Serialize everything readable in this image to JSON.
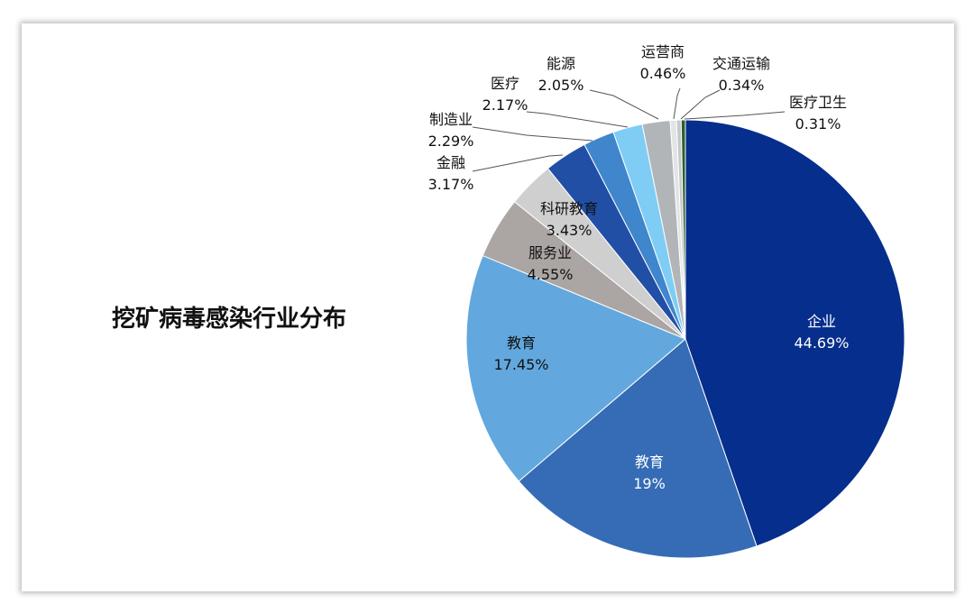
{
  "chart_data": {
    "type": "pie",
    "title": "挖矿病毒感染行业分布",
    "slices": [
      {
        "name": "企业",
        "pct": "44.69%",
        "value": 44.69,
        "color": "#062e8c"
      },
      {
        "name": "教育",
        "pct": "19%",
        "value": 19.0,
        "color": "#356cb5"
      },
      {
        "name": "教育",
        "pct": "17.45%",
        "value": 17.45,
        "color": "#62a8de"
      },
      {
        "name": "服务业",
        "pct": "4.55%",
        "value": 4.55,
        "color": "#aba5a3"
      },
      {
        "name": "科研教育",
        "pct": "3.43%",
        "value": 3.43,
        "color": "#cfcfcf"
      },
      {
        "name": "金融",
        "pct": "3.17%",
        "value": 3.17,
        "color": "#214fa6"
      },
      {
        "name": "制造业",
        "pct": "2.29%",
        "value": 2.29,
        "color": "#3f86cc"
      },
      {
        "name": "医疗",
        "pct": "2.17%",
        "value": 2.17,
        "color": "#7fcdf5"
      },
      {
        "name": "能源",
        "pct": "2.05%",
        "value": 2.05,
        "color": "#b2b5b8"
      },
      {
        "name": "运营商",
        "pct": "0.46%",
        "value": 0.46,
        "color": "#e2e4e6"
      },
      {
        "name": "交通运输",
        "pct": "0.34%",
        "value": 0.34,
        "color": "#c4c9cc"
      },
      {
        "name": "医疗卫生",
        "pct": "0.31%",
        "value": 0.31,
        "color": "#2e5e2a"
      }
    ]
  }
}
